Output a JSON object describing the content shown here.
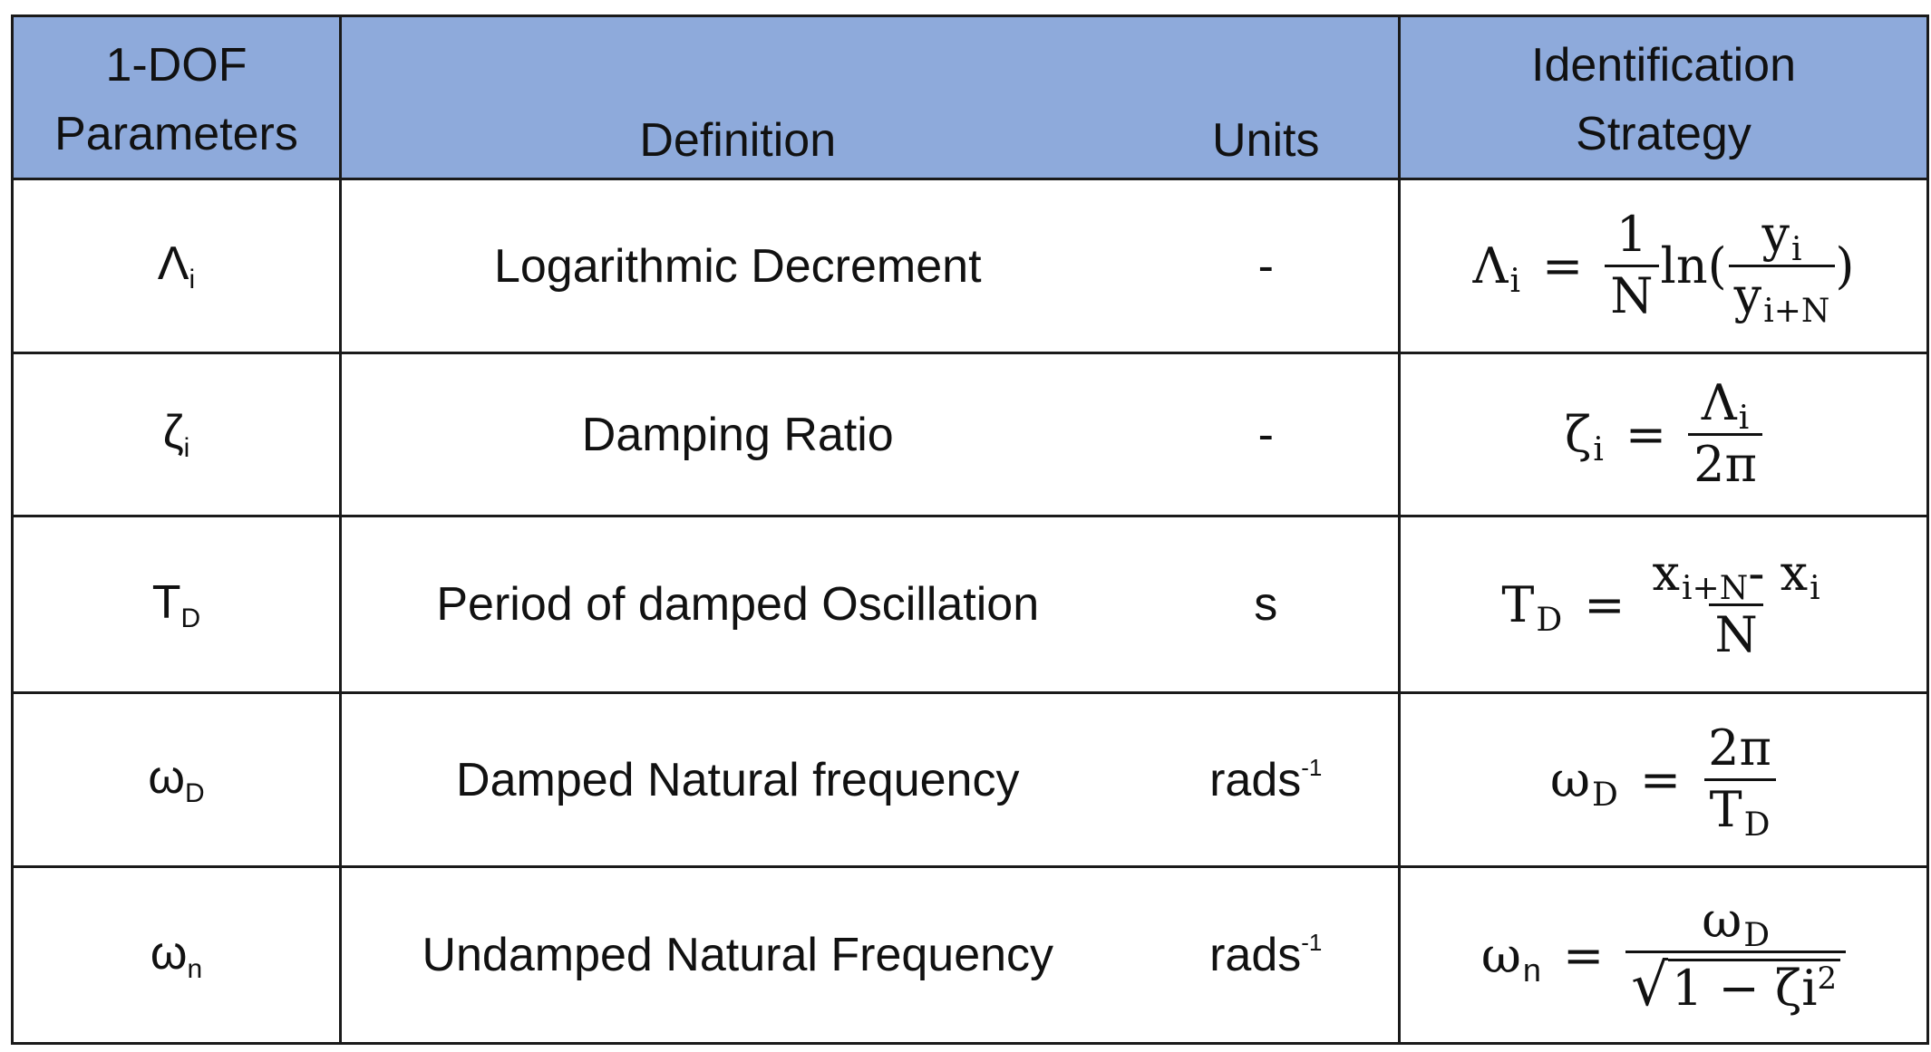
{
  "header": {
    "col1": "1-DOF Parameters",
    "col1_line1": "1-DOF",
    "col1_line2": "Parameters",
    "col2": "Definition",
    "col3": "Units",
    "col4_line1": "Identification",
    "col4_line2": "Strategy"
  },
  "rows": [
    {
      "param_base": "Λ",
      "param_sub": "i",
      "definition": "Logarithmic Decrement",
      "units": "-",
      "formula": {
        "lhs": "Λ",
        "lhs_sub": "i",
        "eq": "=",
        "num": "1",
        "den": "N",
        "mid": "ln(",
        "num2": "y",
        "num2_sub": "i",
        "den2": "y",
        "den2_sub": "i+N",
        "close": ")"
      }
    },
    {
      "param_base": "ζ",
      "param_sub": "i",
      "definition": "Damping Ratio",
      "units": "-",
      "formula": {
        "lhs": "ζ",
        "lhs_sub": "i",
        "eq": "=",
        "num": "Λ",
        "num_sub": "i",
        "den": "2π"
      }
    },
    {
      "param_base": "T",
      "param_sub": "D",
      "definition": "Period of damped Oscillation",
      "units": "s",
      "formula": {
        "lhs": "T",
        "lhs_sub": "D",
        "eq": "=",
        "num_a": "x",
        "num_a_sub": "i+N",
        "num_op": "- ",
        "num_b": "x",
        "num_b_sub": "i",
        "den": "N"
      }
    },
    {
      "param_base": "ω",
      "param_sub": "D",
      "definition": "Damped Natural frequency",
      "units_base": "rads",
      "units_sup": "-1",
      "formula": {
        "lhs": "ω",
        "lhs_sub": "D",
        "eq": "=",
        "num": "2π",
        "den": "T",
        "den_sub": "D"
      }
    },
    {
      "param_base": "ω",
      "param_sub": "n",
      "definition": "Undamped Natural Frequency",
      "units_base": "rads",
      "units_sup": "-1",
      "formula": {
        "lhs": "ω",
        "lhs_sub": "n",
        "eq": "=",
        "num": "ω",
        "num_sub": "D",
        "rad": "√",
        "den_a": "1 − ",
        "den_b": "ζi",
        "den_sup": "2"
      }
    }
  ]
}
